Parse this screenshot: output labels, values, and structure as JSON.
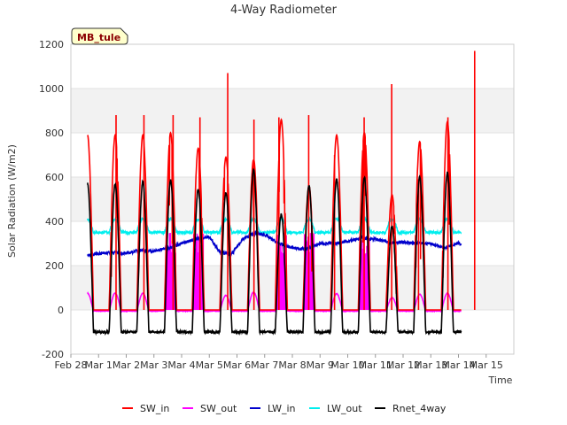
{
  "chart_data": {
    "type": "line",
    "title": "4-Way Radiometer",
    "xlabel": "Time",
    "ylabel": "Solar Radiation (W/m2)",
    "ylim": [
      -200,
      1200
    ],
    "yticks": [
      -200,
      0,
      200,
      400,
      600,
      800,
      1000,
      1200
    ],
    "xlim": [
      0,
      16
    ],
    "xticks": [
      0,
      1,
      2,
      3,
      4,
      5,
      6,
      7,
      8,
      9,
      10,
      11,
      12,
      13,
      14,
      15
    ],
    "xtick_labels": [
      "Feb 28",
      "Mar 1",
      "Mar 2",
      "Mar 3",
      "Mar 4",
      "Mar 5",
      "Mar 6",
      "Mar 7",
      "Mar 8",
      "Mar 9",
      "Mar 10",
      "Mar 11",
      "Mar 12",
      "Mar 13",
      "Mar 14",
      "Mar 15"
    ],
    "site_label": "MB_tule",
    "day_start": 0.6,
    "day_end": 14.1,
    "solar_noon": 0.6,
    "day_length": 0.44,
    "series": [
      {
        "name": "SW_in",
        "color": "#ff0000",
        "daily_peak": [
          790,
          790,
          800,
          730,
          690,
          680,
          860,
          560,
          790,
          800,
          520,
          760,
          850,
          845
        ],
        "spikes": [
          880,
          880,
          880,
          870,
          1070,
          860,
          870,
          880,
          700,
          870,
          1020,
          590,
          870,
          1170
        ]
      },
      {
        "name": "SW_out",
        "color": "#ff00ff",
        "night": -5,
        "daily_peak": [
          80,
          80,
          78,
          75,
          70,
          85,
          75,
          65,
          78,
          80,
          60,
          75,
          80,
          80
        ],
        "fill_days": [
          2,
          3,
          6,
          7,
          9
        ]
      },
      {
        "name": "LW_in",
        "color": "#0000cc",
        "values": [
          [
            0.6,
            245
          ],
          [
            1.0,
            255
          ],
          [
            1.5,
            260
          ],
          [
            2.0,
            255
          ],
          [
            2.5,
            270
          ],
          [
            3.0,
            265
          ],
          [
            3.5,
            280
          ],
          [
            4.0,
            300
          ],
          [
            4.5,
            320
          ],
          [
            5.0,
            330
          ],
          [
            5.4,
            260
          ],
          [
            5.8,
            250
          ],
          [
            6.2,
            320
          ],
          [
            6.6,
            345
          ],
          [
            7.0,
            340
          ],
          [
            7.5,
            300
          ],
          [
            8.0,
            280
          ],
          [
            8.5,
            275
          ],
          [
            9.0,
            300
          ],
          [
            9.5,
            300
          ],
          [
            10.0,
            310
          ],
          [
            10.5,
            325
          ],
          [
            11.0,
            320
          ],
          [
            11.5,
            305
          ],
          [
            12.0,
            305
          ],
          [
            12.5,
            300
          ],
          [
            13.0,
            300
          ],
          [
            13.5,
            280
          ],
          [
            14.0,
            305
          ],
          [
            14.1,
            295
          ]
        ]
      },
      {
        "name": "LW_out",
        "color": "#00eeee",
        "night": 350,
        "day_peak": 410
      },
      {
        "name": "Rnet_4way",
        "color": "#000000",
        "night": -100,
        "daily_peak": [
          570,
          580,
          585,
          545,
          530,
          630,
          430,
          560,
          590,
          600,
          380,
          600,
          620,
          625
        ]
      }
    ]
  }
}
